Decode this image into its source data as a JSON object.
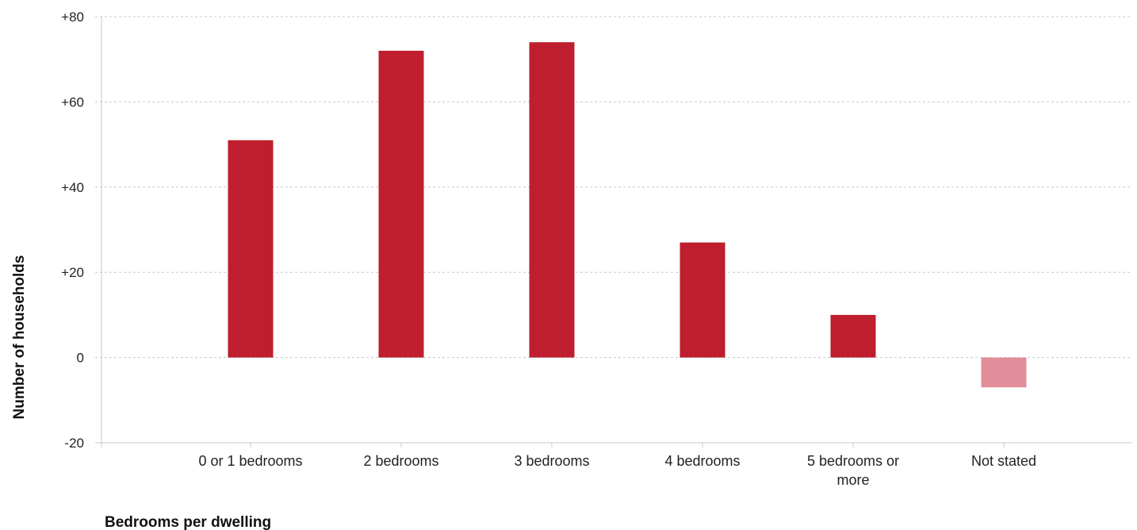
{
  "chart_data": {
    "type": "bar",
    "xlabel": "Bedrooms per dwelling",
    "ylabel": "Number of households",
    "categories": [
      "0 or 1 bedrooms",
      "2 bedrooms",
      "3 bedrooms",
      "4 bedrooms",
      "5 bedrooms or more",
      "Not stated"
    ],
    "category_lines": [
      [
        "0 or 1 bedrooms"
      ],
      [
        "2 bedrooms"
      ],
      [
        "3 bedrooms"
      ],
      [
        "4 bedrooms"
      ],
      [
        "5 bedrooms or",
        "more"
      ],
      [
        "Not stated"
      ]
    ],
    "values": [
      51,
      72,
      74,
      27,
      10,
      -7
    ],
    "ylim": [
      -20,
      80
    ],
    "yticks": [
      -20,
      0,
      20,
      40,
      60,
      80
    ],
    "ytick_labels": [
      "-20",
      "0",
      "+20",
      "+40",
      "+60",
      "+80"
    ],
    "grid": true,
    "legend": "none",
    "colors": {
      "positive": "#be1e2d",
      "negative": "#e38d9a"
    }
  }
}
